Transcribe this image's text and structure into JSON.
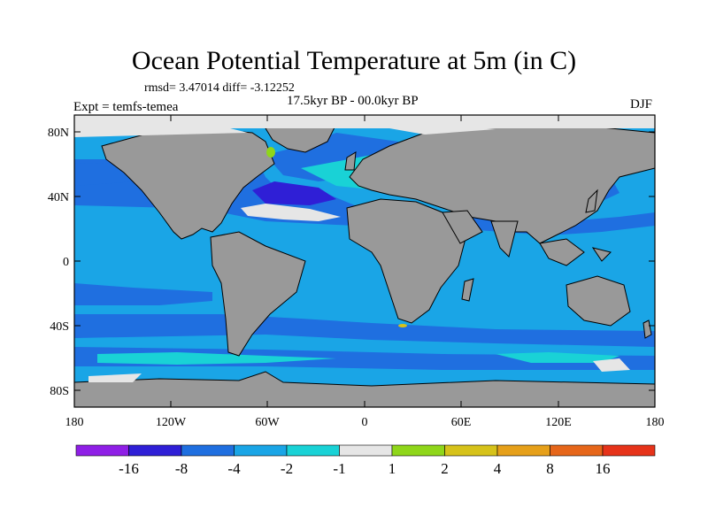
{
  "title": "Ocean Potential Temperature at 5m (in C)",
  "stats_line": "rmsd= 3.47014 diff= -3.12252",
  "period": "17.5kyr BP - 00.0kyr BP",
  "experiment": "Expt = temfs-temea",
  "season": "DJF",
  "y_ticks": [
    "80N",
    "40N",
    "0",
    "40S",
    "80S"
  ],
  "x_ticks": [
    "180",
    "120W",
    "60W",
    "0",
    "60E",
    "120E",
    "180"
  ],
  "colorbar": {
    "labels": [
      "-16",
      "-8",
      "-4",
      "-2",
      "-1",
      "1",
      "2",
      "4",
      "8",
      "16"
    ],
    "colors": [
      "#8f1fe6",
      "#2f1fd6",
      "#1f6fe0",
      "#1aa5e6",
      "#19d2d6",
      "#e6e6e6",
      "#8fd61a",
      "#d6c21a",
      "#e6a01a",
      "#e6661a",
      "#e6331a"
    ]
  },
  "colors": {
    "ocean": "#1aa5e6",
    "land": "#999999",
    "ice": "#e6e6e6"
  }
}
